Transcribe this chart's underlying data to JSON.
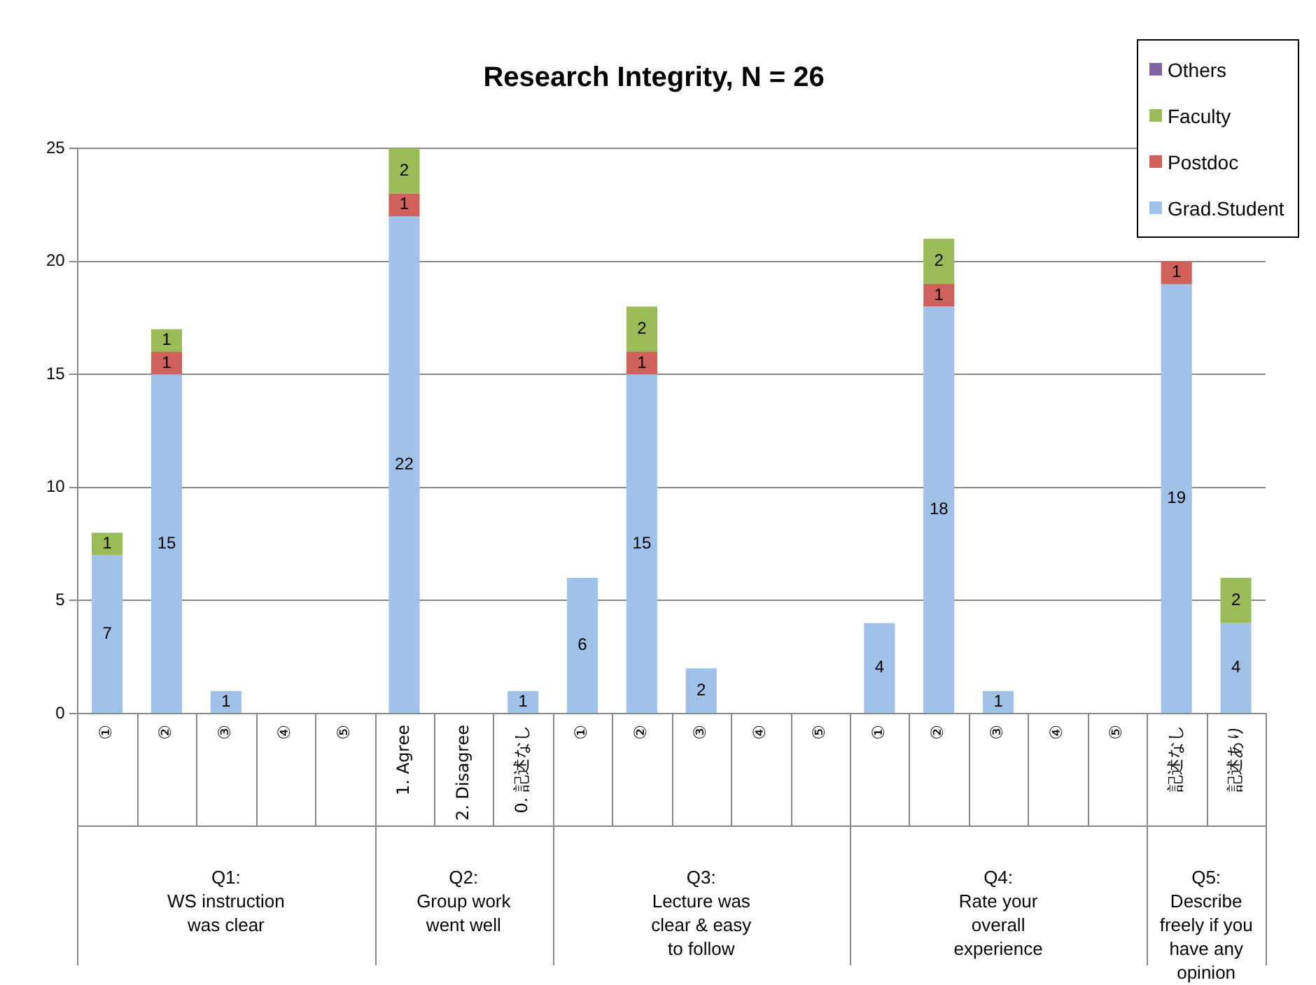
{
  "chart_data": {
    "type": "bar",
    "title": "Research Integrity, N = 26",
    "categories": [
      "①",
      "②",
      "③",
      "④",
      "⑤",
      "1. Agree",
      "2. Disagree",
      "0. 記述なし",
      "①",
      "②",
      "③",
      "④",
      "⑤",
      "①",
      "②",
      "③",
      "④",
      "⑤",
      "記述なし",
      "記述あり"
    ],
    "series": [
      {
        "name": "Grad.Student",
        "color": "#a0c2e9",
        "values": [
          7,
          15,
          1,
          null,
          null,
          22,
          null,
          1,
          6,
          15,
          2,
          null,
          null,
          4,
          18,
          1,
          null,
          null,
          19,
          4
        ]
      },
      {
        "name": "Postdoc",
        "color": "#d0605b",
        "values": [
          null,
          1,
          null,
          null,
          null,
          1,
          null,
          null,
          null,
          1,
          null,
          null,
          null,
          null,
          1,
          null,
          null,
          null,
          1,
          null
        ]
      },
      {
        "name": "Faculty",
        "color": "#9bbb59",
        "values": [
          1,
          1,
          null,
          null,
          null,
          2,
          null,
          null,
          null,
          2,
          null,
          null,
          null,
          null,
          2,
          null,
          null,
          null,
          null,
          2
        ]
      },
      {
        "name": "Others",
        "color": "#8064a2",
        "values": [
          null,
          null,
          null,
          null,
          null,
          null,
          null,
          null,
          null,
          null,
          null,
          null,
          null,
          null,
          null,
          null,
          null,
          null,
          null,
          null
        ]
      }
    ],
    "stacked": true,
    "ylim": [
      0,
      25
    ],
    "yticks": [
      0,
      5,
      10,
      15,
      20,
      25
    ],
    "grid": "y",
    "legend": "top right",
    "data_labels": true,
    "annotations": [
      "Q1:\nWS instruction\nwas clear",
      "Q2:\nGroup work\nwent well",
      "Q3:\nLecture was\nclear & easy\nto follow",
      "Q4:\nRate your\noverall\nexperience",
      "Q5:\nDescribe\nfreely if you\nhave any\nopinion"
    ]
  }
}
